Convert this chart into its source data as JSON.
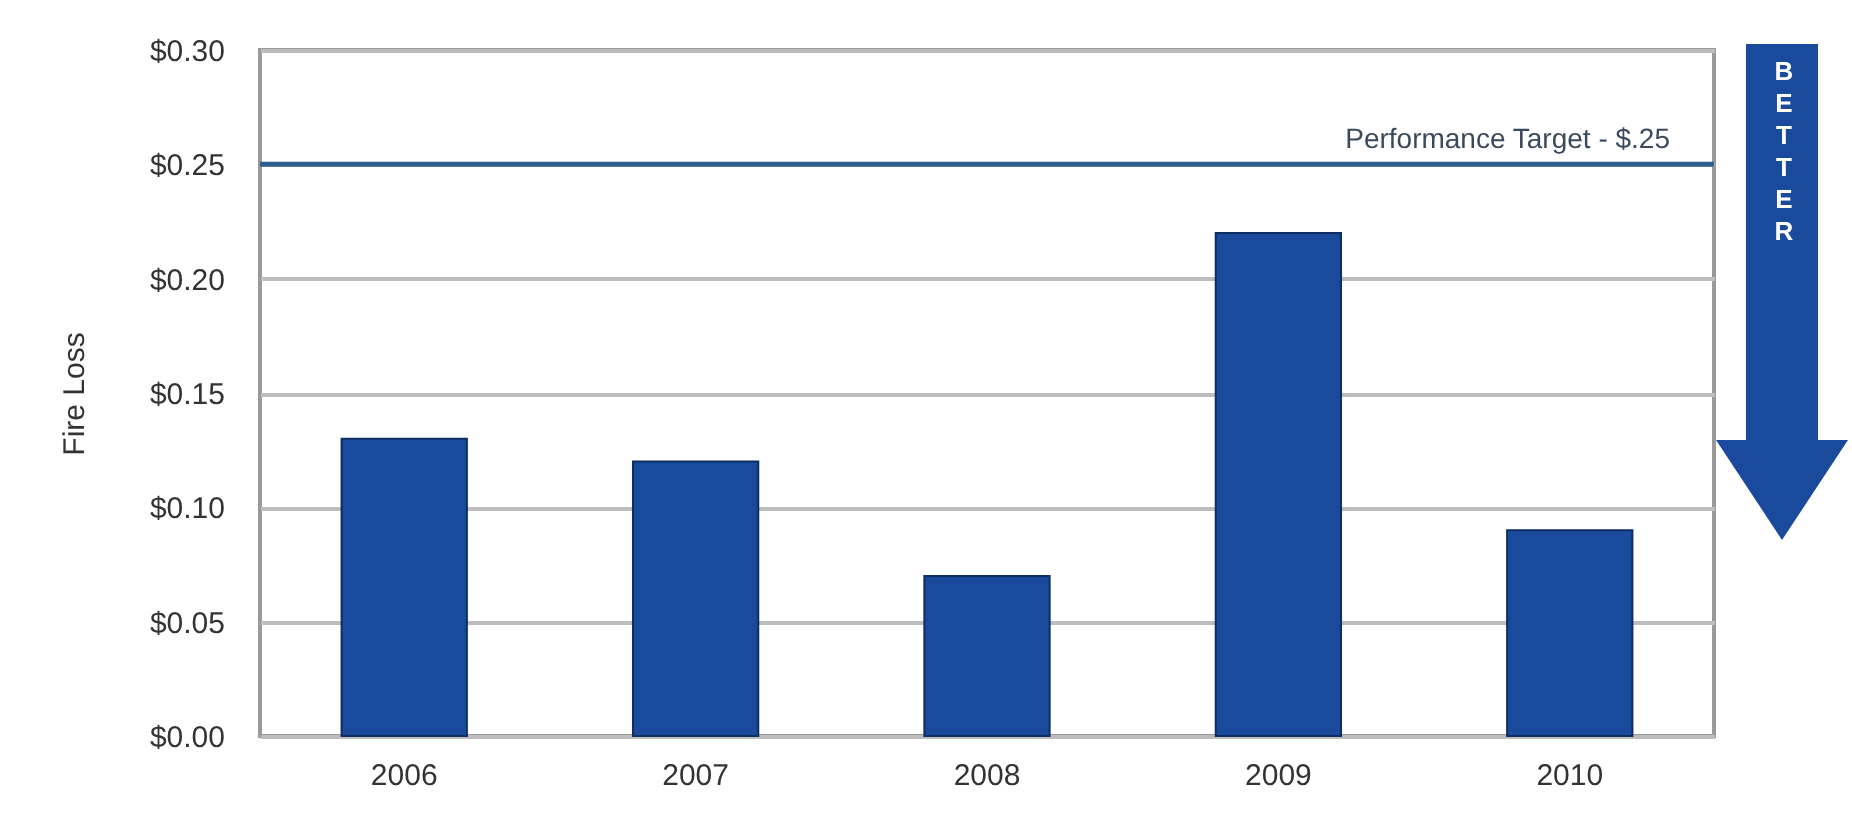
{
  "chart_data": {
    "type": "bar",
    "ylabel": "Fire Loss",
    "categories": [
      "2006",
      "2007",
      "2008",
      "2009",
      "2010"
    ],
    "values": [
      0.13,
      0.12,
      0.07,
      0.22,
      0.09
    ],
    "color": "#1a4a9c",
    "ylim": [
      0,
      0.3
    ],
    "yticks": [
      {
        "value": 0,
        "label": "$0.00"
      },
      {
        "value": 0.05,
        "label": "$0.05"
      },
      {
        "value": 0.1,
        "label": "$0.10"
      },
      {
        "value": 0.15,
        "label": "$0.15"
      },
      {
        "value": 0.2,
        "label": "$0.20"
      },
      {
        "value": 0.25,
        "label": "$0.25"
      },
      {
        "value": 0.3,
        "label": "$0.30"
      }
    ],
    "grid": "y",
    "ref_lines": [
      {
        "axis": "y",
        "value": 0.25,
        "label": "Performance Target - $.25",
        "color": "#2d5f8f"
      }
    ],
    "annotations": [
      "BETTER"
    ]
  }
}
